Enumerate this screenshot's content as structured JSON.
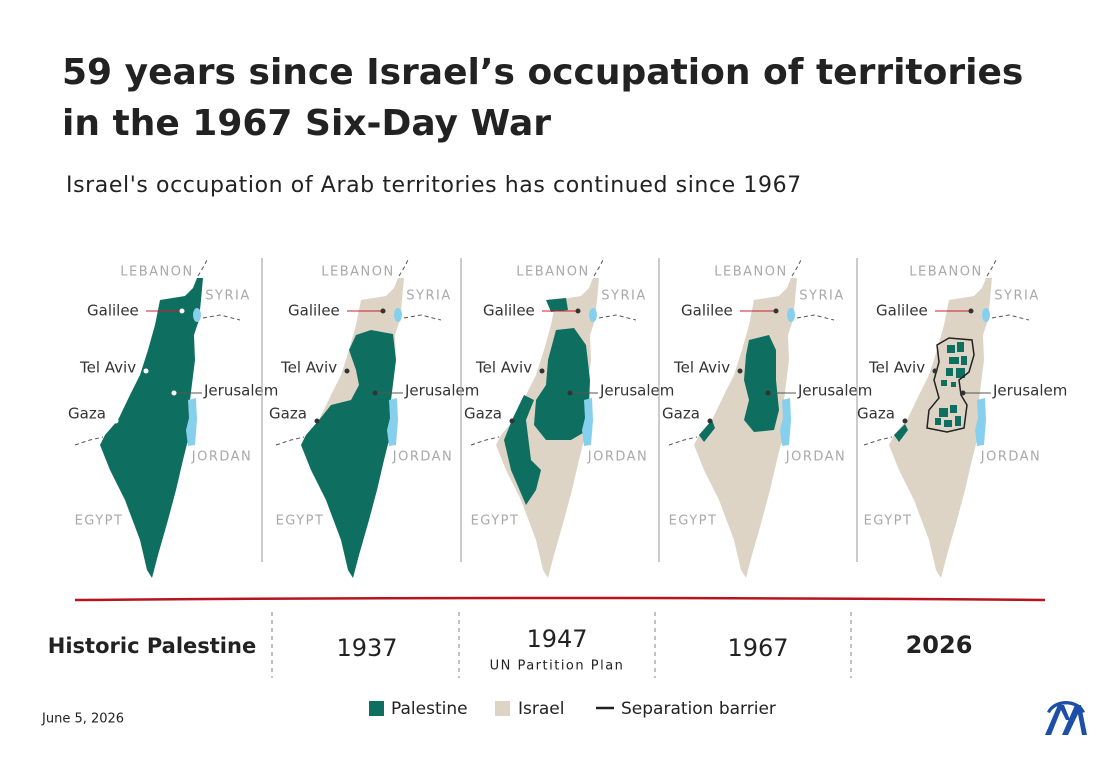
{
  "header": {
    "title_line1": "59 years since Israel’s occupation of territories",
    "title_line2": "in the 1967 Six-Day War",
    "subtitle": "Israel's occupation of Arab territories has continued since 1967"
  },
  "map_labels": {
    "lebanon": "LEBANON",
    "syria": "SYRIA",
    "galilee": "Galilee",
    "tel_aviv": "Tel Aviv",
    "jerusalem": "Jerusalem",
    "gaza": "Gaza",
    "jordan": "JORDAN",
    "egypt": "EGYPT"
  },
  "panels": [
    {
      "caption": "Historic Palestine"
    },
    {
      "caption": "1937"
    },
    {
      "caption": "1947",
      "note": "UN Partition Plan"
    },
    {
      "caption": "1967"
    },
    {
      "caption": "2026"
    }
  ],
  "legend": {
    "palestine": "Palestine",
    "israel": "Israel",
    "barrier": "Separation barrier"
  },
  "footer": {
    "date": "June 5, 2026"
  }
}
